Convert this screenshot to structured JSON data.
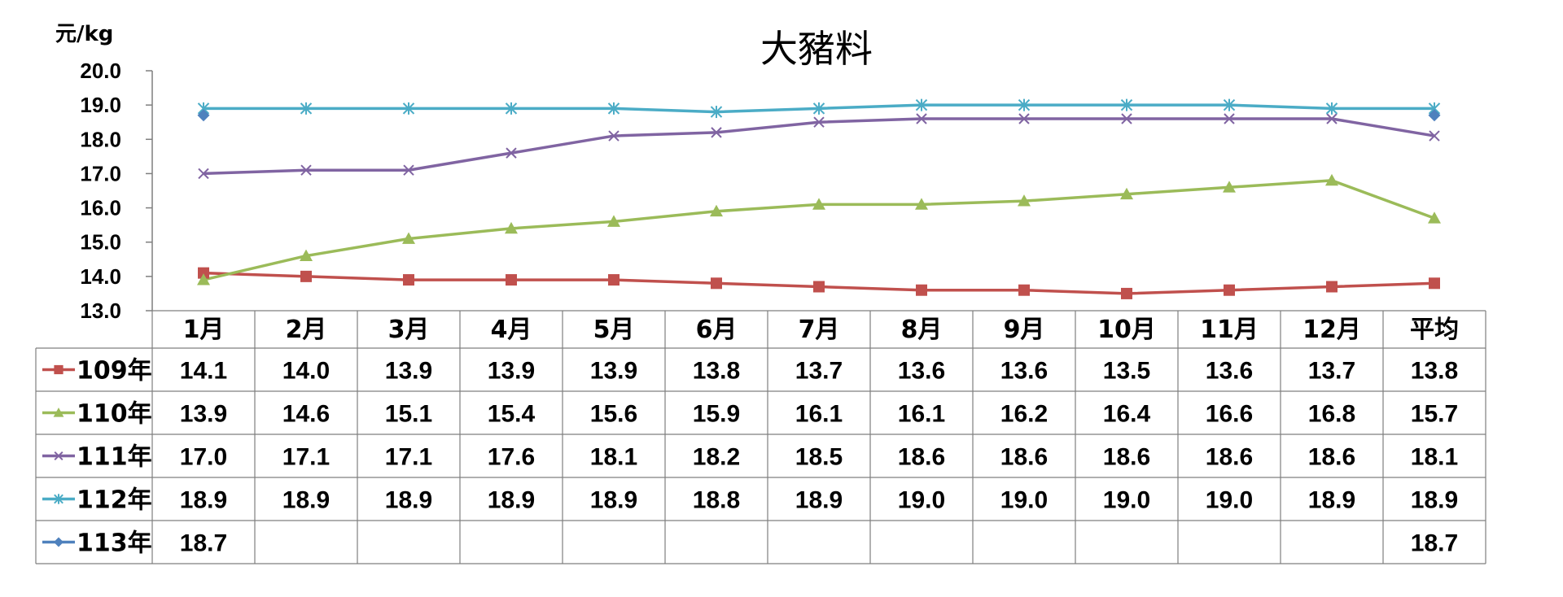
{
  "chart_data": {
    "type": "line",
    "title": "大豬料",
    "ylabel": "元/kg",
    "ylim": [
      13.0,
      20.0
    ],
    "yticks": [
      "20.0",
      "19.0",
      "18.0",
      "17.0",
      "16.0",
      "15.0",
      "14.0",
      "13.0"
    ],
    "categories": [
      "1月",
      "2月",
      "3月",
      "4月",
      "5月",
      "6月",
      "7月",
      "8月",
      "9月",
      "10月",
      "11月",
      "12月",
      "平均"
    ],
    "series": [
      {
        "name": "109年",
        "color": "#c0504d",
        "marker": "square",
        "values": [
          14.1,
          14.0,
          13.9,
          13.9,
          13.9,
          13.8,
          13.7,
          13.6,
          13.6,
          13.5,
          13.6,
          13.7,
          13.8
        ],
        "labels": [
          "14.1",
          "14.0",
          "13.9",
          "13.9",
          "13.9",
          "13.8",
          "13.7",
          "13.6",
          "13.6",
          "13.5",
          "13.6",
          "13.7",
          "13.8"
        ]
      },
      {
        "name": "110年",
        "color": "#9bbb59",
        "marker": "triangle",
        "values": [
          13.9,
          14.6,
          15.1,
          15.4,
          15.6,
          15.9,
          16.1,
          16.1,
          16.2,
          16.4,
          16.6,
          16.8,
          15.7
        ],
        "labels": [
          "13.9",
          "14.6",
          "15.1",
          "15.4",
          "15.6",
          "15.9",
          "16.1",
          "16.1",
          "16.2",
          "16.4",
          "16.6",
          "16.8",
          "15.7"
        ]
      },
      {
        "name": "111年",
        "color": "#8064a2",
        "marker": "x",
        "values": [
          17.0,
          17.1,
          17.1,
          17.6,
          18.1,
          18.2,
          18.5,
          18.6,
          18.6,
          18.6,
          18.6,
          18.6,
          18.1
        ],
        "labels": [
          "17.0",
          "17.1",
          "17.1",
          "17.6",
          "18.1",
          "18.2",
          "18.5",
          "18.6",
          "18.6",
          "18.6",
          "18.6",
          "18.6",
          "18.1"
        ]
      },
      {
        "name": "112年",
        "color": "#4bacc6",
        "marker": "star",
        "values": [
          18.9,
          18.9,
          18.9,
          18.9,
          18.9,
          18.8,
          18.9,
          19.0,
          19.0,
          19.0,
          19.0,
          18.9,
          18.9
        ],
        "labels": [
          "18.9",
          "18.9",
          "18.9",
          "18.9",
          "18.9",
          "18.8",
          "18.9",
          "19.0",
          "19.0",
          "19.0",
          "19.0",
          "18.9",
          "18.9"
        ]
      },
      {
        "name": "113年",
        "color": "#4f81bd",
        "marker": "diamond",
        "values": [
          18.7,
          null,
          null,
          null,
          null,
          null,
          null,
          null,
          null,
          null,
          null,
          null,
          18.7
        ],
        "labels": [
          "18.7",
          "",
          "",
          "",
          "",
          "",
          "",
          "",
          "",
          "",
          "",
          "",
          "18.7"
        ]
      }
    ],
    "grid": false,
    "legend": "data-table-left"
  }
}
